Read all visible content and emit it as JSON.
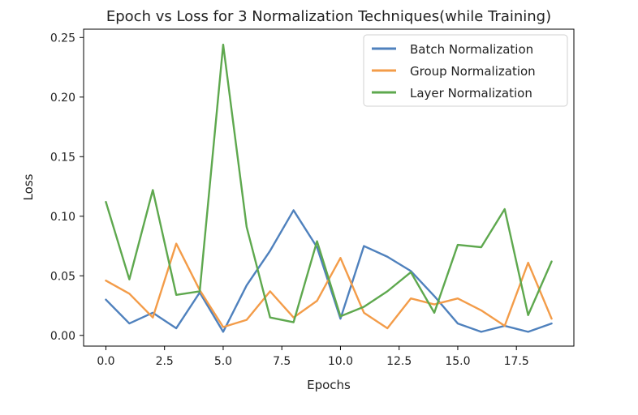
{
  "chart_data": {
    "type": "line",
    "title": "Epoch vs Loss for 3 Normalization Techniques(while Training)",
    "xlabel": "Epochs",
    "ylabel": "Loss",
    "xlim": [
      -0.95,
      19.95
    ],
    "ylim": [
      -0.009,
      0.257
    ],
    "xticks": [
      0.0,
      2.5,
      5.0,
      7.5,
      10.0,
      12.5,
      15.0,
      17.5
    ],
    "xtick_labels": [
      "0.0",
      "2.5",
      "5.0",
      "7.5",
      "10.0",
      "12.5",
      "15.0",
      "17.5"
    ],
    "yticks": [
      0.0,
      0.05,
      0.1,
      0.15,
      0.2,
      0.25
    ],
    "ytick_labels": [
      "0.00",
      "0.05",
      "0.10",
      "0.15",
      "0.20",
      "0.25"
    ],
    "grid": false,
    "legend_position": "top-right",
    "x": [
      0,
      1,
      2,
      3,
      4,
      5,
      6,
      7,
      8,
      9,
      10,
      11,
      12,
      13,
      14,
      15,
      16,
      17,
      18,
      19
    ],
    "series": [
      {
        "name": "Batch Normalization",
        "color": "#4f81bd",
        "values": [
          0.03,
          0.01,
          0.019,
          0.006,
          0.036,
          0.003,
          0.042,
          0.071,
          0.105,
          0.074,
          0.014,
          0.075,
          0.066,
          0.054,
          0.033,
          0.01,
          0.003,
          0.008,
          0.003,
          0.01
        ]
      },
      {
        "name": "Group Normalization",
        "color": "#f39c49",
        "values": [
          0.046,
          0.035,
          0.015,
          0.077,
          0.038,
          0.007,
          0.013,
          0.037,
          0.015,
          0.029,
          0.065,
          0.019,
          0.006,
          0.031,
          0.026,
          0.031,
          0.021,
          0.008,
          0.061,
          0.014
        ]
      },
      {
        "name": "Layer Normalization",
        "color": "#5ea84e",
        "values": [
          0.112,
          0.047,
          0.122,
          0.034,
          0.037,
          0.244,
          0.091,
          0.015,
          0.011,
          0.079,
          0.016,
          0.024,
          0.037,
          0.053,
          0.019,
          0.076,
          0.074,
          0.106,
          0.017,
          0.062
        ]
      }
    ]
  }
}
